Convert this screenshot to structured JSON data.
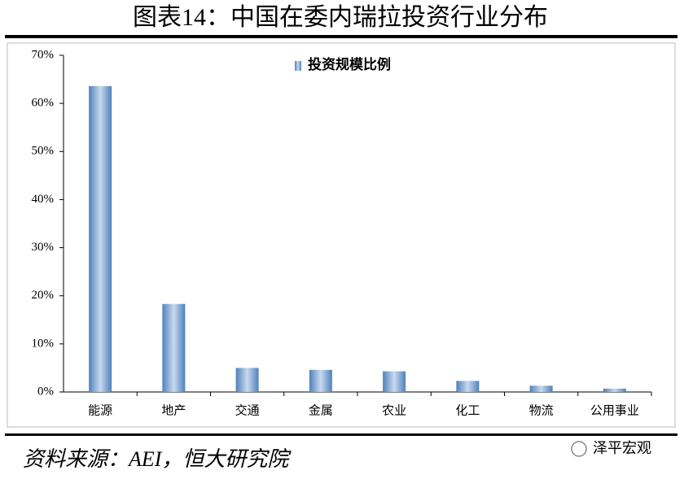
{
  "chart_data": {
    "type": "bar",
    "title": "图表14：中国在委内瑞拉投资行业分布",
    "categories": [
      "能源",
      "地产",
      "交通",
      "金属",
      "农业",
      "化工",
      "物流",
      "公用事业"
    ],
    "series": [
      {
        "name": "投资规模比例",
        "color": "#4f81bd",
        "values": [
          63.6,
          18.3,
          5.0,
          4.6,
          4.3,
          2.3,
          1.3,
          0.7
        ]
      }
    ],
    "ylim": [
      0,
      70
    ],
    "yticks": [
      {
        "value": 0,
        "label": "0%"
      },
      {
        "value": 10,
        "label": "10%"
      },
      {
        "value": 20,
        "label": "20%"
      },
      {
        "value": 30,
        "label": "30%"
      },
      {
        "value": 40,
        "label": "40%"
      },
      {
        "value": 50,
        "label": "50%"
      },
      {
        "value": 60,
        "label": "60%"
      },
      {
        "value": 70,
        "label": "70%"
      }
    ],
    "legend": "top",
    "source": "资料来源：AEI，恒大研究院",
    "watermark": "泽平宏观"
  }
}
